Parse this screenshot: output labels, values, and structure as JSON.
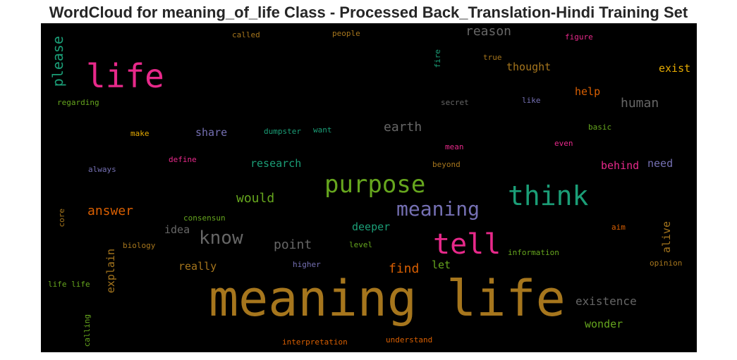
{
  "chart_data": {
    "type": "wordcloud",
    "title": "WordCloud for meaning_of_life Class - Processed Back_Translation-Hindi Training Set",
    "background": "#000000",
    "words": [
      {
        "text": "meaning life",
        "color": "#a6761d"
      },
      {
        "text": "life",
        "color": "#e7298a"
      },
      {
        "text": "tell",
        "color": "#e7298a"
      },
      {
        "text": "think",
        "color": "#1b9e77"
      },
      {
        "text": "purpose",
        "color": "#66a61e"
      },
      {
        "text": "meaning",
        "color": "#7570b3"
      },
      {
        "text": "know",
        "color": "#666666"
      },
      {
        "text": "please",
        "color": "#1b9e77"
      },
      {
        "text": "reason",
        "color": "#666666"
      },
      {
        "text": "answer",
        "color": "#d95f02"
      },
      {
        "text": "would",
        "color": "#66a61e"
      },
      {
        "text": "earth",
        "color": "#666666"
      },
      {
        "text": "human",
        "color": "#666666"
      },
      {
        "text": "point",
        "color": "#666666"
      },
      {
        "text": "existence",
        "color": "#666666"
      },
      {
        "text": "find",
        "color": "#d95f02"
      },
      {
        "text": "thought",
        "color": "#a6761d"
      },
      {
        "text": "exist",
        "color": "#e6ab02"
      },
      {
        "text": "help",
        "color": "#d95f02"
      },
      {
        "text": "wonder",
        "color": "#66a61e"
      },
      {
        "text": "really",
        "color": "#a6761d"
      },
      {
        "text": "share",
        "color": "#7570b3"
      },
      {
        "text": "research",
        "color": "#1b9e77"
      },
      {
        "text": "idea",
        "color": "#666666"
      },
      {
        "text": "deeper",
        "color": "#1b9e77"
      },
      {
        "text": "behind",
        "color": "#e7298a"
      },
      {
        "text": "need",
        "color": "#7570b3"
      },
      {
        "text": "explain",
        "color": "#a6761d"
      },
      {
        "text": "alive",
        "color": "#a6761d"
      },
      {
        "text": "let",
        "color": "#66a61e"
      },
      {
        "text": "called",
        "color": "#a6761d"
      },
      {
        "text": "people",
        "color": "#a6761d"
      },
      {
        "text": "figure",
        "color": "#e7298a"
      },
      {
        "text": "fire",
        "color": "#1b9e77"
      },
      {
        "text": "true",
        "color": "#a6761d"
      },
      {
        "text": "regarding",
        "color": "#66a61e"
      },
      {
        "text": "secret",
        "color": "#666666"
      },
      {
        "text": "like",
        "color": "#7570b3"
      },
      {
        "text": "make",
        "color": "#e6ab02"
      },
      {
        "text": "dumpster",
        "color": "#1b9e77"
      },
      {
        "text": "want",
        "color": "#1b9e77"
      },
      {
        "text": "basic",
        "color": "#66a61e"
      },
      {
        "text": "mean",
        "color": "#e7298a"
      },
      {
        "text": "even",
        "color": "#e7298a"
      },
      {
        "text": "define",
        "color": "#e7298a"
      },
      {
        "text": "always",
        "color": "#7570b3"
      },
      {
        "text": "beyond",
        "color": "#a6761d"
      },
      {
        "text": "consensun",
        "color": "#66a61e"
      },
      {
        "text": "core",
        "color": "#a6761d"
      },
      {
        "text": "aim",
        "color": "#d95f02"
      },
      {
        "text": "biology",
        "color": "#a6761d"
      },
      {
        "text": "level",
        "color": "#66a61e"
      },
      {
        "text": "information",
        "color": "#66a61e"
      },
      {
        "text": "higher",
        "color": "#7570b3"
      },
      {
        "text": "opinion",
        "color": "#a6761d"
      },
      {
        "text": "life life",
        "color": "#66a61e"
      },
      {
        "text": "calling",
        "color": "#66a61e"
      },
      {
        "text": "interpretation",
        "color": "#d95f02"
      },
      {
        "text": "understand",
        "color": "#d95f02"
      }
    ]
  }
}
